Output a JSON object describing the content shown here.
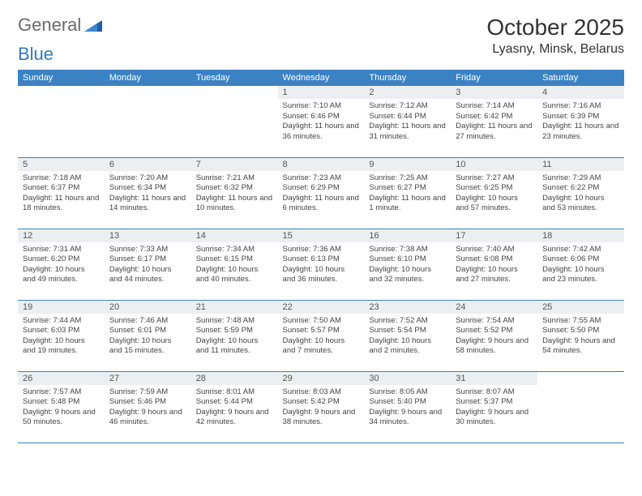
{
  "brand": {
    "part1": "General",
    "part2": "Blue"
  },
  "title": "October 2025",
  "location": "Lyasny, Minsk, Belarus",
  "colors": {
    "header_bg": "#3b82c4",
    "header_text": "#ffffff",
    "daynum_bg": "#eceff1",
    "border": "#3b82c4",
    "brand_gray": "#6a6a6a",
    "brand_blue": "#3676b8"
  },
  "weekdays": [
    "Sunday",
    "Monday",
    "Tuesday",
    "Wednesday",
    "Thursday",
    "Friday",
    "Saturday"
  ],
  "first_weekday_index": 3,
  "days": [
    {
      "n": 1,
      "sunrise": "7:10 AM",
      "sunset": "6:46 PM",
      "daylight": "11 hours and 36 minutes."
    },
    {
      "n": 2,
      "sunrise": "7:12 AM",
      "sunset": "6:44 PM",
      "daylight": "11 hours and 31 minutes."
    },
    {
      "n": 3,
      "sunrise": "7:14 AM",
      "sunset": "6:42 PM",
      "daylight": "11 hours and 27 minutes."
    },
    {
      "n": 4,
      "sunrise": "7:16 AM",
      "sunset": "6:39 PM",
      "daylight": "11 hours and 23 minutes."
    },
    {
      "n": 5,
      "sunrise": "7:18 AM",
      "sunset": "6:37 PM",
      "daylight": "11 hours and 18 minutes."
    },
    {
      "n": 6,
      "sunrise": "7:20 AM",
      "sunset": "6:34 PM",
      "daylight": "11 hours and 14 minutes."
    },
    {
      "n": 7,
      "sunrise": "7:21 AM",
      "sunset": "6:32 PM",
      "daylight": "11 hours and 10 minutes."
    },
    {
      "n": 8,
      "sunrise": "7:23 AM",
      "sunset": "6:29 PM",
      "daylight": "11 hours and 6 minutes."
    },
    {
      "n": 9,
      "sunrise": "7:25 AM",
      "sunset": "6:27 PM",
      "daylight": "11 hours and 1 minute."
    },
    {
      "n": 10,
      "sunrise": "7:27 AM",
      "sunset": "6:25 PM",
      "daylight": "10 hours and 57 minutes."
    },
    {
      "n": 11,
      "sunrise": "7:29 AM",
      "sunset": "6:22 PM",
      "daylight": "10 hours and 53 minutes."
    },
    {
      "n": 12,
      "sunrise": "7:31 AM",
      "sunset": "6:20 PM",
      "daylight": "10 hours and 49 minutes."
    },
    {
      "n": 13,
      "sunrise": "7:33 AM",
      "sunset": "6:17 PM",
      "daylight": "10 hours and 44 minutes."
    },
    {
      "n": 14,
      "sunrise": "7:34 AM",
      "sunset": "6:15 PM",
      "daylight": "10 hours and 40 minutes."
    },
    {
      "n": 15,
      "sunrise": "7:36 AM",
      "sunset": "6:13 PM",
      "daylight": "10 hours and 36 minutes."
    },
    {
      "n": 16,
      "sunrise": "7:38 AM",
      "sunset": "6:10 PM",
      "daylight": "10 hours and 32 minutes."
    },
    {
      "n": 17,
      "sunrise": "7:40 AM",
      "sunset": "6:08 PM",
      "daylight": "10 hours and 27 minutes."
    },
    {
      "n": 18,
      "sunrise": "7:42 AM",
      "sunset": "6:06 PM",
      "daylight": "10 hours and 23 minutes."
    },
    {
      "n": 19,
      "sunrise": "7:44 AM",
      "sunset": "6:03 PM",
      "daylight": "10 hours and 19 minutes."
    },
    {
      "n": 20,
      "sunrise": "7:46 AM",
      "sunset": "6:01 PM",
      "daylight": "10 hours and 15 minutes."
    },
    {
      "n": 21,
      "sunrise": "7:48 AM",
      "sunset": "5:59 PM",
      "daylight": "10 hours and 11 minutes."
    },
    {
      "n": 22,
      "sunrise": "7:50 AM",
      "sunset": "5:57 PM",
      "daylight": "10 hours and 7 minutes."
    },
    {
      "n": 23,
      "sunrise": "7:52 AM",
      "sunset": "5:54 PM",
      "daylight": "10 hours and 2 minutes."
    },
    {
      "n": 24,
      "sunrise": "7:54 AM",
      "sunset": "5:52 PM",
      "daylight": "9 hours and 58 minutes."
    },
    {
      "n": 25,
      "sunrise": "7:55 AM",
      "sunset": "5:50 PM",
      "daylight": "9 hours and 54 minutes."
    },
    {
      "n": 26,
      "sunrise": "7:57 AM",
      "sunset": "5:48 PM",
      "daylight": "9 hours and 50 minutes."
    },
    {
      "n": 27,
      "sunrise": "7:59 AM",
      "sunset": "5:46 PM",
      "daylight": "9 hours and 46 minutes."
    },
    {
      "n": 28,
      "sunrise": "8:01 AM",
      "sunset": "5:44 PM",
      "daylight": "9 hours and 42 minutes."
    },
    {
      "n": 29,
      "sunrise": "8:03 AM",
      "sunset": "5:42 PM",
      "daylight": "9 hours and 38 minutes."
    },
    {
      "n": 30,
      "sunrise": "8:05 AM",
      "sunset": "5:40 PM",
      "daylight": "9 hours and 34 minutes."
    },
    {
      "n": 31,
      "sunrise": "8:07 AM",
      "sunset": "5:37 PM",
      "daylight": "9 hours and 30 minutes."
    }
  ]
}
